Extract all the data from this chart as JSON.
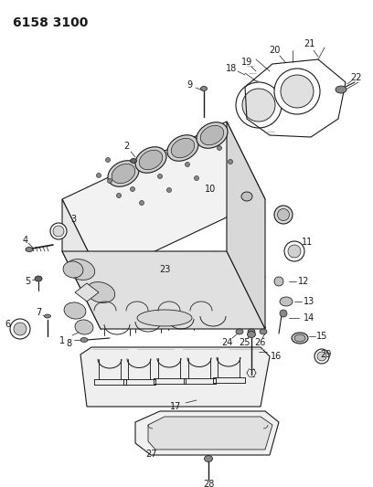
{
  "title": "6158 3100",
  "background_color": "#ffffff",
  "line_color": "#1a1a1a",
  "figsize": [
    4.08,
    5.33
  ],
  "dpi": 100,
  "title_fontsize": 10,
  "label_fontsize": 7
}
